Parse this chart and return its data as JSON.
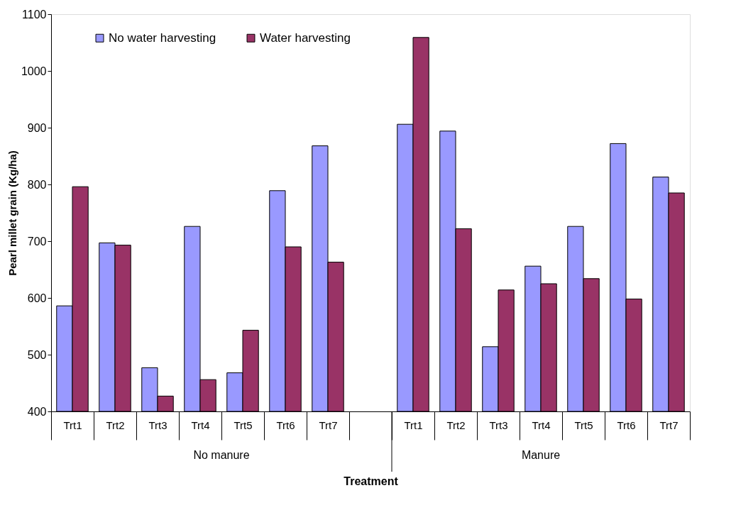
{
  "chart_data": {
    "type": "bar",
    "xlabel": "Treatment",
    "ylabel": "Pearl millet grain (Kg/ha)",
    "categories": [
      "Trt1",
      "Trt2",
      "Trt3",
      "Trt4",
      "Trt5",
      "Trt6",
      "Trt7",
      null,
      "Trt1",
      "Trt2",
      "Trt3",
      "Trt4",
      "Trt5",
      "Trt6",
      "Trt7"
    ],
    "series": [
      {
        "name": "No water harvesting",
        "color": "#9999ff",
        "values": [
          586,
          697,
          477,
          726,
          468,
          789,
          868,
          null,
          906,
          894,
          514,
          656,
          726,
          872,
          813
        ]
      },
      {
        "name": "Water harvesting",
        "color": "#993366",
        "values": [
          796,
          693,
          427,
          456,
          543,
          690,
          663,
          null,
          1059,
          722,
          614,
          625,
          634,
          598,
          785
        ]
      }
    ],
    "ylim": [
      400,
      1100
    ],
    "yticks": [
      400,
      500,
      600,
      700,
      800,
      900,
      1000,
      1100
    ],
    "grid": false,
    "legend": "top left",
    "annotations": [
      "No manure",
      "Manure"
    ]
  }
}
